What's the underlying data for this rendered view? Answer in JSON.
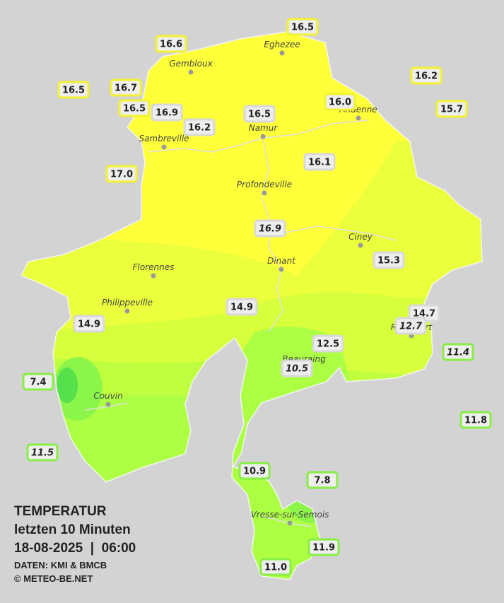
{
  "title": {
    "heading": "TEMPERATUR",
    "period": "letzten 10 Minuten",
    "datetime": "18-08-2025  |  06:00",
    "source": "DATEN: KMI & BMCB",
    "copyright": "© METEO-BE.NET"
  },
  "cities": [
    "Eghezee",
    "Gembloux",
    "Andenne",
    "Namur",
    "Sambreville",
    "Profondeville",
    "Ciney",
    "Dinant",
    "Florennes",
    "Philippeville",
    "Rochefort",
    "Beauraing",
    "Couvin",
    "Vresse-sur-Semois"
  ],
  "stations": [
    "16.5",
    "16.6",
    "16.5",
    "16.7",
    "16.2",
    "16.5",
    "16.9",
    "16.5",
    "16.0",
    "15.7",
    "16.2",
    "17.0",
    "16.1",
    "16.9",
    "15.3",
    "14.9",
    "14.9",
    "14.7",
    "12.7",
    "11.4",
    "12.5",
    "10.5",
    "7.4",
    "11.8",
    "11.5",
    "10.9",
    "7.8",
    "11.9",
    "11.0"
  ]
}
